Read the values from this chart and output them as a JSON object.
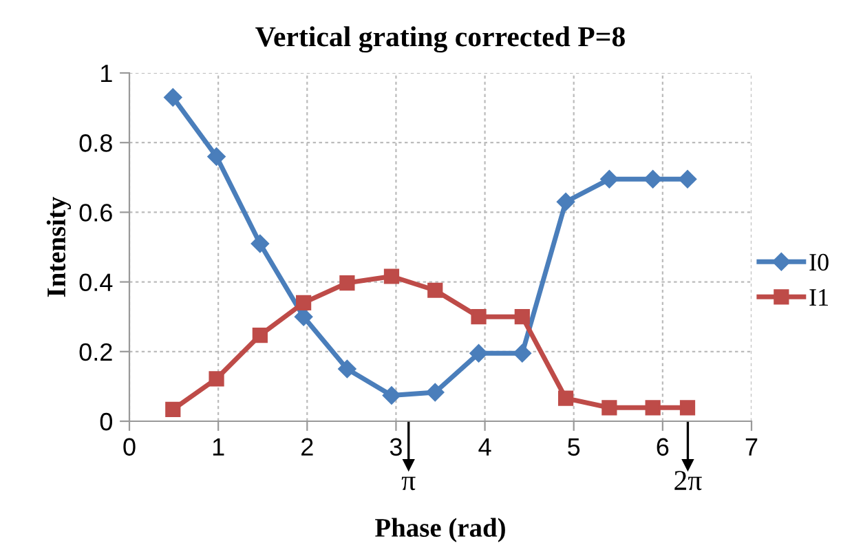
{
  "chart_data": {
    "type": "line",
    "title": "Vertical grating corrected P=8",
    "xlabel": "Phase (rad)",
    "ylabel": "Intensity",
    "x": [
      0.49,
      0.98,
      1.47,
      1.96,
      2.45,
      2.95,
      3.44,
      3.93,
      4.42,
      4.91,
      5.4,
      5.89,
      6.28
    ],
    "series": [
      {
        "name": "I0",
        "color": "#4a7ebb",
        "marker": "diamond",
        "values": [
          0.93,
          0.76,
          0.51,
          0.3,
          0.15,
          0.074,
          0.083,
          0.195,
          0.195,
          0.63,
          0.695,
          0.695,
          0.695
        ]
      },
      {
        "name": "I1",
        "color": "#be4b48",
        "marker": "square",
        "values": [
          0.034,
          0.122,
          0.247,
          0.34,
          0.397,
          0.416,
          0.376,
          0.3,
          0.3,
          0.066,
          0.039,
          0.039,
          0.039
        ]
      }
    ],
    "xlim": [
      0,
      7
    ],
    "xticks": [
      0,
      1,
      2,
      3,
      4,
      5,
      6,
      7
    ],
    "ylim": [
      0,
      1
    ],
    "yticks": [
      0,
      0.2,
      0.4,
      0.6,
      0.8,
      1
    ],
    "grid": true,
    "legend": "right",
    "line_style": "solid",
    "ref_lines": [
      {
        "axis": "x",
        "value": 3.1416,
        "label": "π"
      },
      {
        "axis": "x",
        "value": 6.2832,
        "label": "2π"
      }
    ]
  }
}
